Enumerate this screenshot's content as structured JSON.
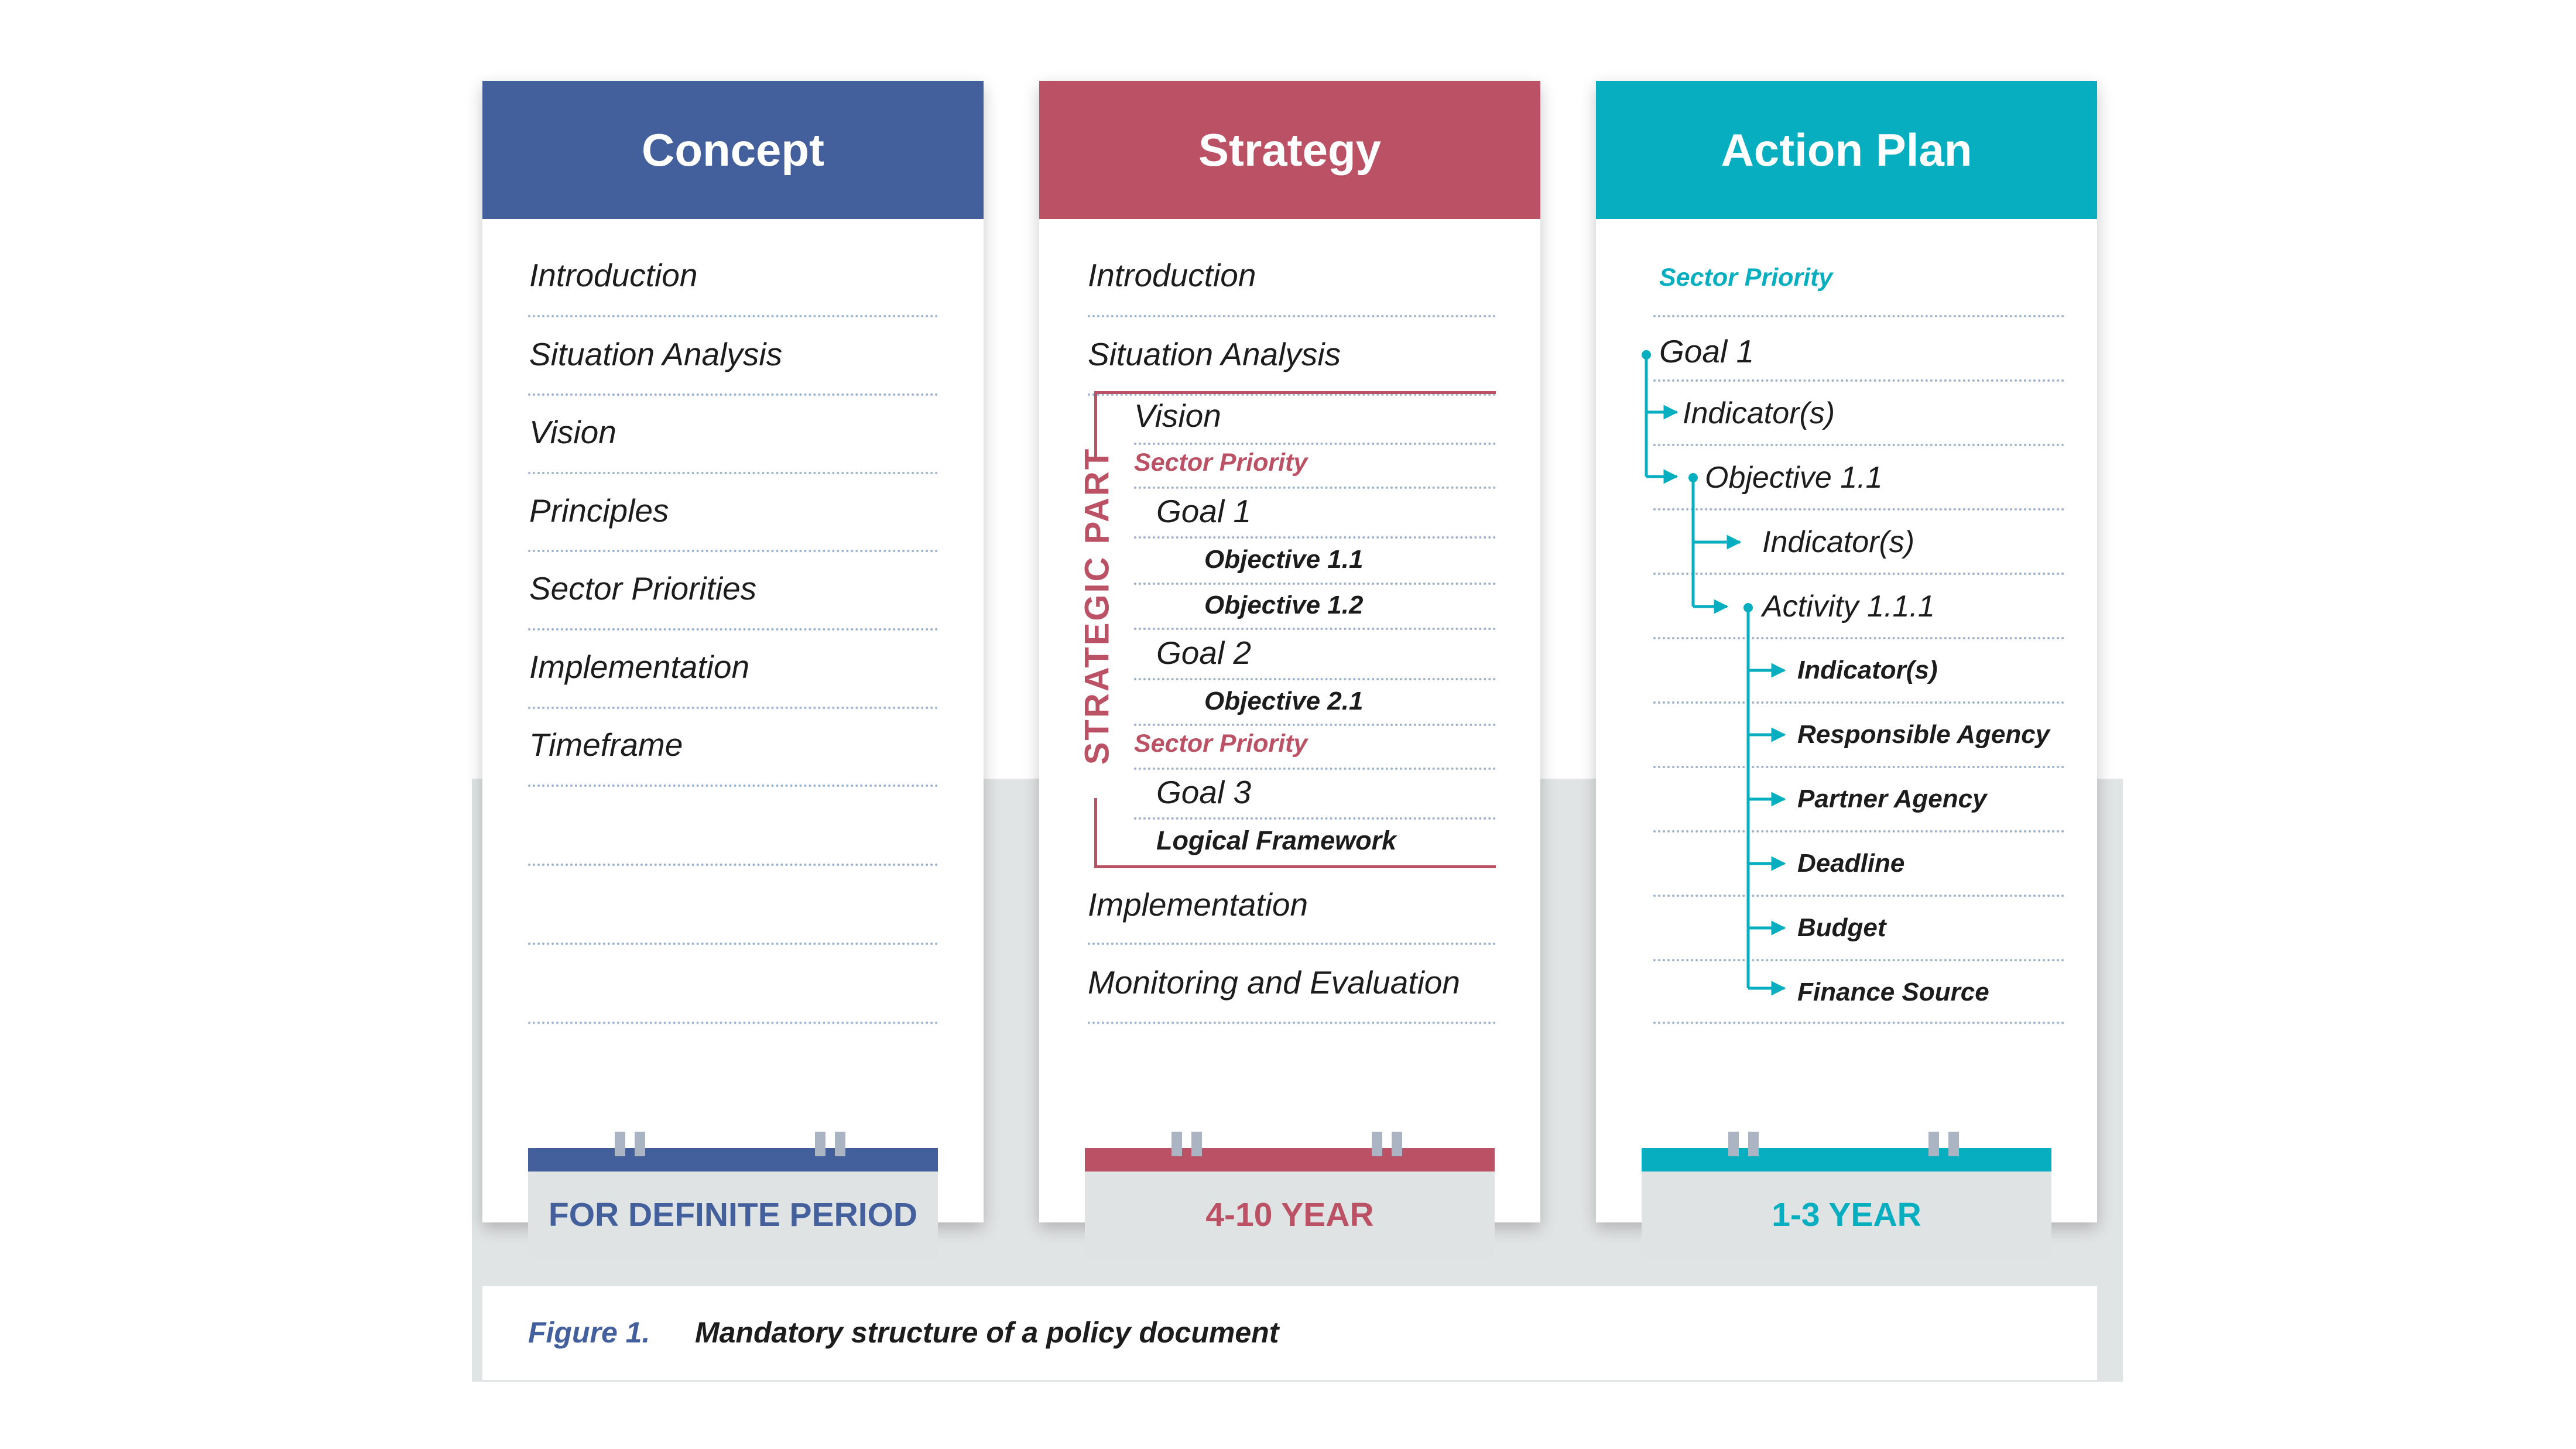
{
  "columns": {
    "concept": {
      "title": "Concept",
      "items": [
        "Introduction",
        "Situation Analysis",
        "Vision",
        "Principles",
        "Sector Priorities",
        "Implementation",
        "Timeframe"
      ],
      "period": "FOR DEFINITE PERIOD",
      "color": "#43609c"
    },
    "strategy": {
      "title": "Strategy",
      "items": {
        "introduction": "Introduction",
        "situation_analysis": "Situation Analysis",
        "vision": "Vision",
        "sector_priority_1": "Sector Priority",
        "goal_1": "Goal 1",
        "objective_1_1": "Objective 1.1",
        "objective_1_2": "Objective 1.2",
        "goal_2": "Goal 2",
        "objective_2_1": "Objective 2.1",
        "sector_priority_2": "Sector Priority",
        "goal_3": "Goal 3",
        "logical_framework": "Logical Framework",
        "implementation": "Implementation",
        "monitoring": "Monitoring and Evaluation"
      },
      "strategic_part_label": "STRATEGIC PART",
      "period": "4-10 YEAR",
      "color": "#bb5164"
    },
    "action_plan": {
      "title": "Action Plan",
      "items": {
        "sector_priority": "Sector Priority",
        "goal_1": "Goal 1",
        "indicators_goal": "Indicator(s)",
        "objective_1_1": "Objective 1.1",
        "indicators_objective": "Indicator(s)",
        "activity_1_1_1": "Activity 1.1.1",
        "indicators_activity": "Indicator(s)",
        "responsible_agency": "Responsible Agency",
        "partner_agency": "Partner Agency",
        "deadline": "Deadline",
        "budget": "Budget",
        "finance_source": "Finance Source"
      },
      "period": "1-3 YEAR",
      "color": "#06aebf"
    }
  },
  "caption": {
    "label": "Figure 1.",
    "text": "Mandatory structure of a policy document"
  }
}
